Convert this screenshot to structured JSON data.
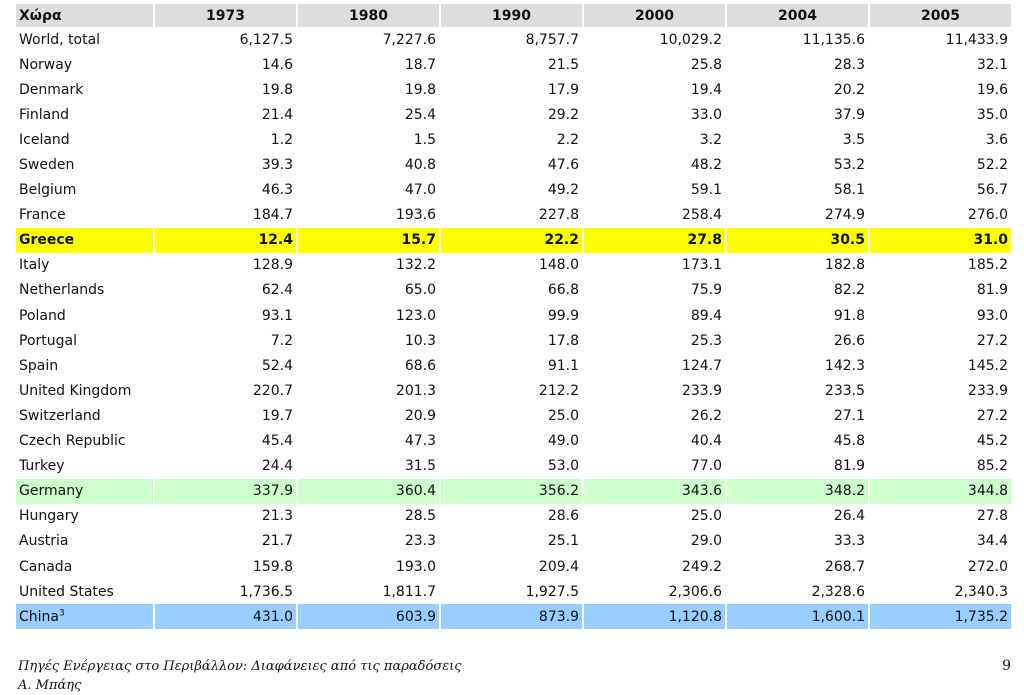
{
  "table": {
    "header": [
      "Χώρα",
      "1973",
      "1980",
      "1990",
      "2000",
      "2004",
      "2005"
    ],
    "rows": [
      {
        "country": "World, total",
        "values": [
          "6,127.5",
          "7,227.6",
          "8,757.7",
          "10,029.2",
          "11,135.6",
          "11,433.9"
        ],
        "highlight": ""
      },
      {
        "country": "Norway",
        "values": [
          "14.6",
          "18.7",
          "21.5",
          "25.8",
          "28.3",
          "32.1"
        ],
        "highlight": ""
      },
      {
        "country": "Denmark",
        "values": [
          "19.8",
          "19.8",
          "17.9",
          "19.4",
          "20.2",
          "19.6"
        ],
        "highlight": ""
      },
      {
        "country": "Finland",
        "values": [
          "21.4",
          "25.4",
          "29.2",
          "33.0",
          "37.9",
          "35.0"
        ],
        "highlight": ""
      },
      {
        "country": "Iceland",
        "values": [
          "1.2",
          "1.5",
          "2.2",
          "3.2",
          "3.5",
          "3.6"
        ],
        "highlight": ""
      },
      {
        "country": "Sweden",
        "values": [
          "39.3",
          "40.8",
          "47.6",
          "48.2",
          "53.2",
          "52.2"
        ],
        "highlight": ""
      },
      {
        "country": "Belgium",
        "values": [
          "46.3",
          "47.0",
          "49.2",
          "59.1",
          "58.1",
          "56.7"
        ],
        "highlight": ""
      },
      {
        "country": "France",
        "values": [
          "184.7",
          "193.6",
          "227.8",
          "258.4",
          "274.9",
          "276.0"
        ],
        "highlight": ""
      },
      {
        "country": "Greece",
        "values": [
          "12.4",
          "15.7",
          "22.2",
          "27.8",
          "30.5",
          "31.0"
        ],
        "highlight": "yellow"
      },
      {
        "country": "Italy",
        "values": [
          "128.9",
          "132.2",
          "148.0",
          "173.1",
          "182.8",
          "185.2"
        ],
        "highlight": ""
      },
      {
        "country": "Netherlands",
        "values": [
          "62.4",
          "65.0",
          "66.8",
          "75.9",
          "82.2",
          "81.9"
        ],
        "highlight": ""
      },
      {
        "country": "Poland",
        "values": [
          "93.1",
          "123.0",
          "99.9",
          "89.4",
          "91.8",
          "93.0"
        ],
        "highlight": ""
      },
      {
        "country": "Portugal",
        "values": [
          "7.2",
          "10.3",
          "17.8",
          "25.3",
          "26.6",
          "27.2"
        ],
        "highlight": ""
      },
      {
        "country": "Spain",
        "values": [
          "52.4",
          "68.6",
          "91.1",
          "124.7",
          "142.3",
          "145.2"
        ],
        "highlight": ""
      },
      {
        "country": "United Kingdom",
        "values": [
          "220.7",
          "201.3",
          "212.2",
          "233.9",
          "233.5",
          "233.9"
        ],
        "highlight": ""
      },
      {
        "country": "Switzerland",
        "values": [
          "19.7",
          "20.9",
          "25.0",
          "26.2",
          "27.1",
          "27.2"
        ],
        "highlight": ""
      },
      {
        "country": "Czech Republic",
        "values": [
          "45.4",
          "47.3",
          "49.0",
          "40.4",
          "45.8",
          "45.2"
        ],
        "highlight": ""
      },
      {
        "country": "Turkey",
        "values": [
          "24.4",
          "31.5",
          "53.0",
          "77.0",
          "81.9",
          "85.2"
        ],
        "highlight": ""
      },
      {
        "country": "Germany",
        "values": [
          "337.9",
          "360.4",
          "356.2",
          "343.6",
          "348.2",
          "344.8"
        ],
        "highlight": "green"
      },
      {
        "country": "Hungary",
        "values": [
          "21.3",
          "28.5",
          "28.6",
          "25.0",
          "26.4",
          "27.8"
        ],
        "highlight": ""
      },
      {
        "country": "Austria",
        "values": [
          "21.7",
          "23.3",
          "25.1",
          "29.0",
          "33.3",
          "34.4"
        ],
        "highlight": ""
      },
      {
        "country": "Canada",
        "values": [
          "159.8",
          "193.0",
          "209.4",
          "249.2",
          "268.7",
          "272.0"
        ],
        "highlight": ""
      },
      {
        "country": "United States",
        "values": [
          "1,736.5",
          "1,811.7",
          "1,927.5",
          "2,306.6",
          "2,328.6",
          "2,340.3"
        ],
        "highlight": ""
      },
      {
        "country": "China",
        "sup": "3",
        "values": [
          "431.0",
          "603.9",
          "873.9",
          "1,120.8",
          "1,600.1",
          "1,735.2"
        ],
        "highlight": "blue"
      }
    ]
  },
  "footer": {
    "title": "Πηγές Ενέργειας στο Περιβάλλον: Διαφάνειες από τις παραδόσεις",
    "author": "Α. Μπάης",
    "page_number": "9"
  },
  "colors": {
    "header_bg": "#dddddd",
    "highlight_yellow": "#ffff00",
    "highlight_green": "#ccffcc",
    "highlight_blue": "#99ccff"
  }
}
